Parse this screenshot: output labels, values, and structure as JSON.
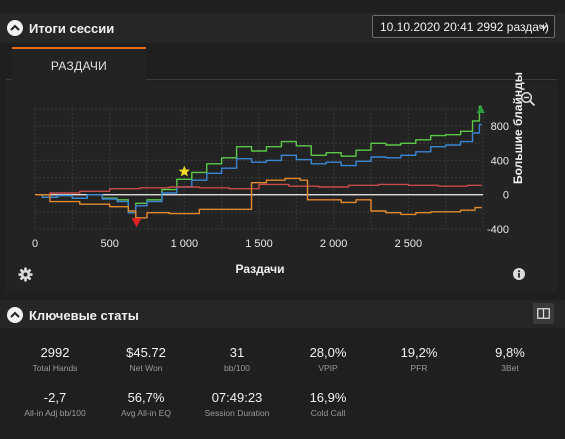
{
  "session_panel": {
    "title": "Итоги сессии",
    "session_select": "10.10.2020 20:41 2992 раздач)"
  },
  "tabs": [
    {
      "label": "РАЗДАЧИ"
    }
  ],
  "chart_data": {
    "type": "line",
    "xlabel": "Раздачи",
    "ylabel": "Большие блайнды",
    "xlim": [
      0,
      3000
    ],
    "ylim": [
      -400,
      1000
    ],
    "x_ticks": [
      "0",
      "500",
      "1 000",
      "1 500",
      "2 000",
      "2 500"
    ],
    "x_tick_values": [
      0,
      500,
      1000,
      1500,
      2000,
      2500
    ],
    "y_ticks": [
      "800",
      "400",
      "0",
      "-400"
    ],
    "y_tick_values": [
      800,
      400,
      0,
      -400
    ],
    "grid": true,
    "series": [
      {
        "color": "#5cc848",
        "x": [
          0,
          100,
          200,
          300,
          400,
          500,
          600,
          650,
          700,
          800,
          900,
          1000,
          1100,
          1200,
          1300,
          1400,
          1500,
          1600,
          1700,
          1800,
          1900,
          2000,
          2100,
          2200,
          2300,
          2400,
          2500,
          2600,
          2700,
          2800,
          2900,
          2960,
          2992
        ],
        "y": [
          0,
          -30,
          -10,
          -40,
          0,
          -40,
          -60,
          -210,
          -100,
          -60,
          60,
          180,
          260,
          360,
          430,
          560,
          510,
          560,
          620,
          570,
          460,
          490,
          450,
          520,
          600,
          580,
          600,
          640,
          690,
          700,
          740,
          860,
          1030
        ]
      },
      {
        "color": "#3b86d4",
        "x": [
          0,
          100,
          200,
          300,
          400,
          500,
          600,
          650,
          700,
          800,
          900,
          1000,
          1100,
          1200,
          1300,
          1400,
          1500,
          1600,
          1700,
          1800,
          1900,
          2000,
          2100,
          2200,
          2300,
          2400,
          2500,
          2600,
          2700,
          2800,
          2900,
          2960,
          2992
        ],
        "y": [
          0,
          -30,
          -10,
          -40,
          0,
          -50,
          -80,
          -210,
          -130,
          -80,
          20,
          90,
          170,
          250,
          310,
          420,
          380,
          400,
          460,
          410,
          360,
          380,
          340,
          390,
          440,
          430,
          460,
          500,
          560,
          580,
          620,
          720,
          820
        ]
      },
      {
        "color": "#c94a4a",
        "x": [
          0,
          200,
          400,
          600,
          800,
          1000,
          1200,
          1400,
          1600,
          1800,
          2000,
          2200,
          2400,
          2600,
          2800,
          2992
        ],
        "y": [
          0,
          20,
          40,
          70,
          80,
          90,
          80,
          70,
          120,
          100,
          90,
          110,
          120,
          110,
          100,
          110
        ]
      },
      {
        "color": "#e08a2c",
        "x": [
          0,
          200,
          400,
          600,
          650,
          700,
          800,
          1000,
          1200,
          1400,
          1500,
          1600,
          1750,
          1800,
          1850,
          2000,
          2100,
          2200,
          2300,
          2400,
          2500,
          2600,
          2700,
          2800,
          2900,
          2992
        ],
        "y": [
          0,
          -80,
          -110,
          -140,
          -190,
          -270,
          -210,
          -220,
          -170,
          -170,
          140,
          170,
          190,
          170,
          -60,
          -60,
          -90,
          -60,
          -190,
          -210,
          -230,
          -210,
          -200,
          -200,
          -180,
          -150
        ]
      }
    ],
    "markers": [
      {
        "kind": "star",
        "x": 1000,
        "y": 270,
        "color": "#f2dd22"
      },
      {
        "kind": "triangle-down",
        "x": 680,
        "y": -320,
        "color": "#e02020"
      },
      {
        "kind": "triangle-up",
        "x": 2985,
        "y": 1000,
        "color": "#2aa03a"
      }
    ]
  },
  "stats_panel": {
    "title": "Ключевые статы",
    "items": [
      {
        "value": "2992",
        "label": "Total Hands"
      },
      {
        "value": "$45.72",
        "label": "Net Won"
      },
      {
        "value": "31",
        "label": "bb/100"
      },
      {
        "value": "28,0%",
        "label": "VPIP"
      },
      {
        "value": "19,2%",
        "label": "PFR"
      },
      {
        "value": "9,8%",
        "label": "3Bet"
      },
      {
        "value": "-2,7",
        "label": "All-in Adj bb/100"
      },
      {
        "value": "56,7%",
        "label": "Avg All-in EQ"
      },
      {
        "value": "07:49:23",
        "label": "Session Duration"
      },
      {
        "value": "16,9%",
        "label": "Cold Call"
      }
    ]
  },
  "icons": [
    "collapse-icon",
    "chevron-down-icon",
    "zoom-icon",
    "settings-icon",
    "info-icon",
    "layout-icon"
  ]
}
